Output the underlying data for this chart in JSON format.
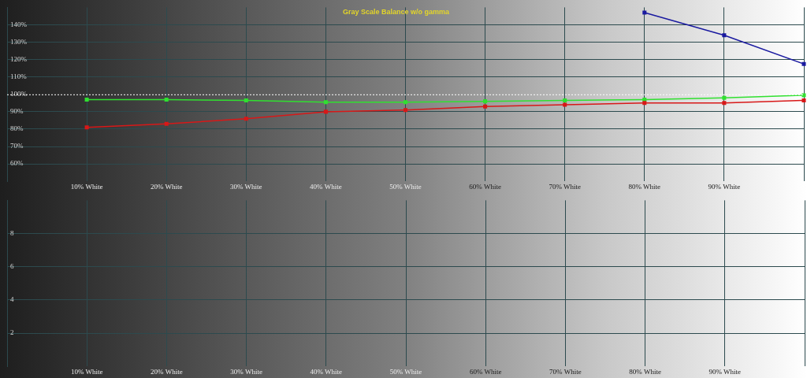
{
  "chart_data": [
    {
      "type": "line",
      "title": "Gray Scale Balance w/o gamma",
      "categories": [
        null,
        "10% White",
        "20% White",
        "30% White",
        "40% White",
        "50% White",
        "60% White",
        "70% White",
        "80% White",
        "90% White",
        null
      ],
      "series": [
        {
          "color": "#d81818",
          "values": [
            null,
            81,
            83,
            86,
            90,
            91,
            93,
            94,
            95,
            95,
            96.5
          ]
        },
        {
          "color": "#30e030",
          "values": [
            null,
            97,
            97,
            96.5,
            95.5,
            95.5,
            96,
            96.5,
            97,
            98,
            99.5
          ]
        },
        {
          "color": "#1a1aa0",
          "values": [
            null,
            null,
            null,
            null,
            null,
            null,
            null,
            null,
            147,
            134,
            117.5
          ]
        }
      ],
      "ylim": [
        50,
        150
      ],
      "yticks": [
        {
          "value": 60,
          "label": "60%"
        },
        {
          "value": 70,
          "label": "70%"
        },
        {
          "value": 80,
          "label": "80%"
        },
        {
          "value": 90,
          "label": "90%"
        },
        {
          "value": 100,
          "label": "100%"
        },
        {
          "value": 110,
          "label": "110%"
        },
        {
          "value": 120,
          "label": "120%"
        },
        {
          "value": 130,
          "label": "130%"
        },
        {
          "value": 140,
          "label": "140%"
        }
      ],
      "grid": true,
      "marker": "square",
      "ref_lines": [
        {
          "axis": "y",
          "value": 100,
          "color": "#ffffff",
          "line_style": "dotted"
        }
      ]
    },
    {
      "type": "line",
      "categories": [
        null,
        "10% White",
        "20% White",
        "30% White",
        "40% White",
        "50% White",
        "60% White",
        "70% White",
        "80% White",
        "90% White",
        null
      ],
      "ylim": [
        0,
        10
      ],
      "yticks": [
        2,
        4,
        6,
        8
      ],
      "grid": true
    }
  ]
}
